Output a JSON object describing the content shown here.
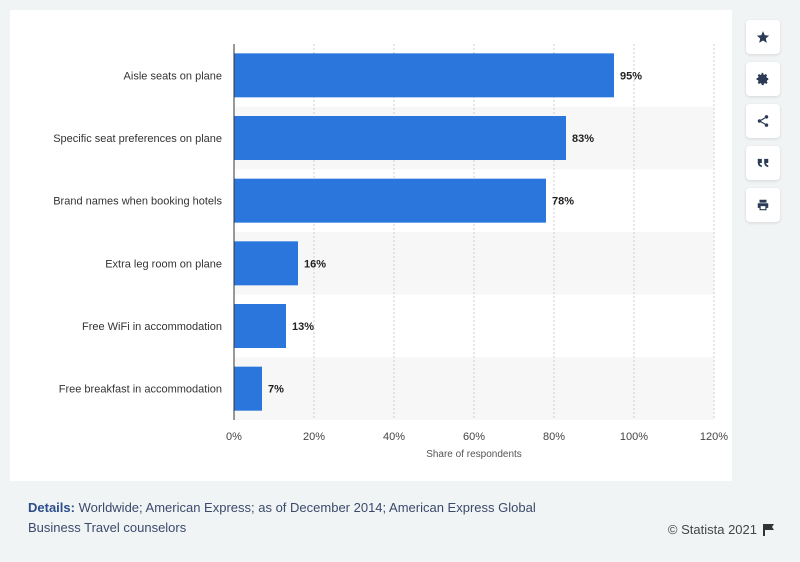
{
  "chart_data": {
    "type": "bar",
    "orientation": "horizontal",
    "categories": [
      "Aisle seats on plane",
      "Specific seat preferences on plane",
      "Brand names when booking hotels",
      "Extra leg room on plane",
      "Free WiFi in accommodation",
      "Free breakfast in accommodation"
    ],
    "values": [
      95,
      83,
      78,
      16,
      13,
      7
    ],
    "value_labels": [
      "95%",
      "83%",
      "78%",
      "16%",
      "13%",
      "7%"
    ],
    "xlabel": "Share of respondents",
    "ylabel": "",
    "xlim": [
      0,
      120
    ],
    "xticks": [
      0,
      20,
      40,
      60,
      80,
      100,
      120
    ],
    "xtick_labels": [
      "0%",
      "20%",
      "40%",
      "60%",
      "80%",
      "100%",
      "120%"
    ],
    "bar_color": "#2a76dd",
    "grid": true
  },
  "toolbar": {
    "icons": [
      "star-icon",
      "gear-icon",
      "share-icon",
      "quote-icon",
      "print-icon"
    ],
    "icon_color": "#2b3a55"
  },
  "footer": {
    "details_label": "Details:",
    "details_text": " Worldwide; American Express; as of December 2014; American Express Global Business Travel counselors",
    "credit": "© Statista 2021"
  }
}
